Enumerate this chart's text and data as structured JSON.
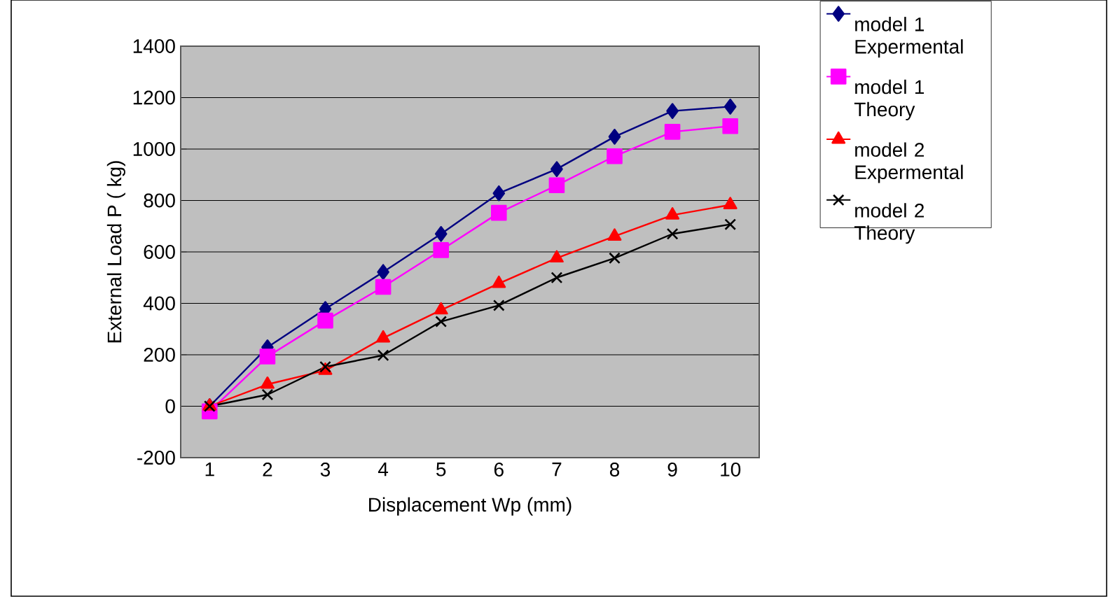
{
  "chart_data": {
    "type": "line",
    "xlabel": "Displacement   Wp     (mm)",
    "ylabel": "External Load    P ( kg)",
    "categories": [
      "1",
      "2",
      "3",
      "4",
      "5",
      "6",
      "7",
      "8",
      "9",
      "10"
    ],
    "ylim": [
      -200,
      1400
    ],
    "yticks": [
      -200,
      0,
      200,
      400,
      600,
      800,
      1000,
      1200,
      1400
    ],
    "grid": "y",
    "legend": "top right",
    "series": [
      {
        "name": "model 1 Expermental",
        "color": "#000080",
        "marker": "diamond",
        "values": [
          0,
          229,
          378,
          522,
          670,
          828,
          922,
          1048,
          1148,
          1165
        ]
      },
      {
        "name": "model 1 Theory",
        "color": "#ff00ff",
        "marker": "square",
        "values": [
          -20,
          193,
          333,
          464,
          607,
          752,
          859,
          972,
          1067,
          1089
        ]
      },
      {
        "name": "model 2 Expermental",
        "color": "#ff0000",
        "marker": "triangle",
        "values": [
          0,
          85,
          139,
          265,
          374,
          477,
          576,
          661,
          743,
          783
        ]
      },
      {
        "name": "model 2 Theory",
        "color": "#000000",
        "marker": "cross",
        "values": [
          0,
          45,
          153,
          198,
          329,
          392,
          500,
          576,
          670,
          707
        ]
      }
    ]
  }
}
